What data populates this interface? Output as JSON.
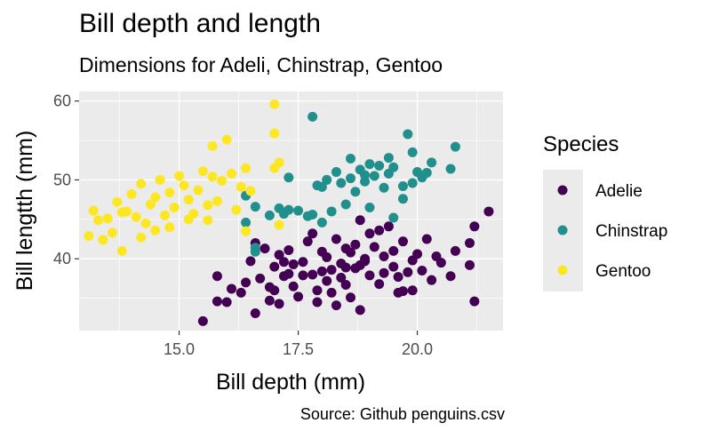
{
  "chart_data": {
    "type": "scatter",
    "title": "Bill depth and length",
    "subtitle": "Dimensions for Adeli, Chinstrap, Gentoo",
    "caption": "Source: Github penguins.csv",
    "xlabel": "Bill depth (mm)",
    "ylabel": "Bill lengtth (mm)",
    "xlim": [
      12.9,
      21.8
    ],
    "ylim": [
      30.9,
      61.2
    ],
    "xticks": [
      15.0,
      17.5,
      20.0
    ],
    "xtick_labels": [
      "15.0",
      "17.5",
      "20.0"
    ],
    "yticks": [
      40,
      50,
      60
    ],
    "ytick_labels": [
      "40",
      "50",
      "60"
    ],
    "grid": true,
    "legend": {
      "title": "Species",
      "position": "right"
    },
    "series": [
      {
        "name": "Adelie",
        "color": "#440154",
        "points": [
          [
            15.5,
            32.1
          ],
          [
            16.6,
            33.1
          ],
          [
            16.0,
            34.5
          ],
          [
            16.3,
            35.7
          ],
          [
            15.8,
            34.6
          ],
          [
            16.1,
            36.2
          ],
          [
            15.8,
            37.8
          ],
          [
            16.4,
            37.0
          ],
          [
            16.9,
            36.4
          ],
          [
            16.9,
            34.7
          ],
          [
            17.0,
            36.0
          ],
          [
            17.1,
            34.3
          ],
          [
            17.2,
            37.8
          ],
          [
            17.3,
            38.1
          ],
          [
            17.4,
            36.5
          ],
          [
            17.6,
            37.9
          ],
          [
            17.8,
            38.0
          ],
          [
            17.9,
            34.5
          ],
          [
            18.0,
            38.4
          ],
          [
            18.1,
            37.2
          ],
          [
            18.2,
            38.6
          ],
          [
            18.4,
            39.4
          ],
          [
            18.5,
            36.7
          ],
          [
            18.6,
            40.8
          ],
          [
            18.7,
            38.8
          ],
          [
            18.8,
            39.2
          ],
          [
            18.9,
            40.0
          ],
          [
            19.0,
            37.9
          ],
          [
            19.1,
            41.5
          ],
          [
            19.2,
            36.8
          ],
          [
            19.3,
            40.3
          ],
          [
            19.5,
            39.0
          ],
          [
            19.6,
            37.7
          ],
          [
            19.7,
            42.2
          ],
          [
            19.9,
            39.8
          ],
          [
            20.0,
            40.6
          ],
          [
            20.2,
            42.5
          ],
          [
            20.5,
            39.5
          ],
          [
            20.7,
            37.8
          ],
          [
            20.8,
            41.0
          ],
          [
            21.1,
            42.0
          ],
          [
            21.2,
            44.1
          ],
          [
            21.1,
            39.2
          ],
          [
            21.2,
            34.6
          ],
          [
            21.5,
            46.0
          ],
          [
            20.3,
            37.3
          ],
          [
            19.4,
            44.1
          ],
          [
            18.8,
            44.9
          ],
          [
            18.3,
            42.5
          ],
          [
            17.8,
            43.2
          ],
          [
            17.3,
            41.1
          ],
          [
            16.8,
            41.3
          ],
          [
            16.6,
            42.0
          ],
          [
            17.0,
            39.0
          ],
          [
            17.6,
            39.6
          ],
          [
            18.0,
            40.9
          ],
          [
            18.5,
            41.3
          ],
          [
            19.0,
            43.2
          ],
          [
            19.3,
            38.2
          ],
          [
            19.9,
            36.0
          ],
          [
            18.6,
            35.1
          ],
          [
            18.2,
            35.7
          ],
          [
            17.9,
            36.0
          ],
          [
            17.5,
            35.2
          ],
          [
            18.8,
            33.5
          ],
          [
            19.6,
            35.7
          ],
          [
            20.1,
            38.5
          ],
          [
            18.4,
            37.6
          ],
          [
            17.7,
            42.2
          ],
          [
            19.5,
            41.0
          ],
          [
            18.9,
            39.7
          ],
          [
            18.1,
            40.2
          ],
          [
            17.4,
            39.3
          ],
          [
            16.7,
            37.5
          ],
          [
            16.5,
            39.7
          ],
          [
            17.1,
            40.5
          ],
          [
            18.7,
            41.8
          ],
          [
            19.2,
            43.6
          ],
          [
            20.4,
            40.3
          ],
          [
            19.8,
            38.3
          ],
          [
            19.7,
            35.9
          ],
          [
            18.3,
            34.1
          ],
          [
            17.2,
            39.6
          ],
          [
            18.5,
            38.9
          ]
        ]
      },
      {
        "name": "Chinstrap",
        "color": "#21908C",
        "points": [
          [
            16.4,
            48.0
          ],
          [
            16.6,
            46.6
          ],
          [
            16.4,
            44.6
          ],
          [
            16.6,
            41.4
          ],
          [
            16.6,
            40.9
          ],
          [
            17.1,
            46.4
          ],
          [
            17.2,
            45.7
          ],
          [
            17.3,
            50.3
          ],
          [
            17.8,
            58.0
          ],
          [
            17.8,
            45.6
          ],
          [
            17.9,
            49.3
          ],
          [
            18.0,
            44.6
          ],
          [
            18.1,
            50.0
          ],
          [
            18.3,
            51.0
          ],
          [
            18.4,
            49.6
          ],
          [
            18.5,
            46.9
          ],
          [
            18.6,
            50.2
          ],
          [
            18.7,
            48.5
          ],
          [
            18.8,
            51.3
          ],
          [
            18.9,
            49.8
          ],
          [
            19.0,
            52.0
          ],
          [
            19.1,
            50.5
          ],
          [
            19.2,
            51.8
          ],
          [
            19.3,
            49.0
          ],
          [
            19.4,
            50.8
          ],
          [
            19.5,
            51.6
          ],
          [
            19.7,
            49.2
          ],
          [
            19.8,
            55.8
          ],
          [
            19.9,
            53.5
          ],
          [
            20.0,
            51.0
          ],
          [
            20.2,
            50.9
          ],
          [
            20.7,
            51.4
          ],
          [
            20.8,
            54.2
          ],
          [
            20.3,
            52.2
          ],
          [
            19.7,
            47.6
          ],
          [
            19.5,
            45.2
          ],
          [
            19.0,
            46.5
          ],
          [
            18.2,
            46.0
          ],
          [
            17.7,
            45.4
          ],
          [
            17.3,
            46.2
          ],
          [
            16.9,
            45.5
          ],
          [
            17.5,
            46.1
          ],
          [
            18.6,
            52.7
          ],
          [
            18.9,
            50.6
          ],
          [
            19.4,
            52.8
          ],
          [
            20.1,
            50.3
          ],
          [
            19.9,
            49.6
          ],
          [
            18.0,
            49.1
          ]
        ]
      },
      {
        "name": "Gentoo",
        "color": "#FDE725",
        "points": [
          [
            13.1,
            42.9
          ],
          [
            13.2,
            46.1
          ],
          [
            13.3,
            44.9
          ],
          [
            13.4,
            42.4
          ],
          [
            13.5,
            45.1
          ],
          [
            13.6,
            43.3
          ],
          [
            13.7,
            47.2
          ],
          [
            13.8,
            41.0
          ],
          [
            13.9,
            46.0
          ],
          [
            14.0,
            48.2
          ],
          [
            14.1,
            45.3
          ],
          [
            14.2,
            49.5
          ],
          [
            14.3,
            44.5
          ],
          [
            14.4,
            46.9
          ],
          [
            14.5,
            47.8
          ],
          [
            14.6,
            50.0
          ],
          [
            14.7,
            45.5
          ],
          [
            14.8,
            48.4
          ],
          [
            14.9,
            46.5
          ],
          [
            15.0,
            50.5
          ],
          [
            15.1,
            49.3
          ],
          [
            15.2,
            47.5
          ],
          [
            15.3,
            45.7
          ],
          [
            15.4,
            48.7
          ],
          [
            15.5,
            51.1
          ],
          [
            15.6,
            46.8
          ],
          [
            15.7,
            50.4
          ],
          [
            15.8,
            47.3
          ],
          [
            15.9,
            49.9
          ],
          [
            16.0,
            55.1
          ],
          [
            16.1,
            50.8
          ],
          [
            16.2,
            46.2
          ],
          [
            16.3,
            49.1
          ],
          [
            16.4,
            51.5
          ],
          [
            16.5,
            48.6
          ],
          [
            15.7,
            54.3
          ],
          [
            17.0,
            59.6
          ],
          [
            17.0,
            55.9
          ],
          [
            17.0,
            51.5
          ],
          [
            17.1,
            52.2
          ],
          [
            17.1,
            44.3
          ],
          [
            16.4,
            43.5
          ],
          [
            15.6,
            44.9
          ],
          [
            14.8,
            44.0
          ],
          [
            13.8,
            45.9
          ],
          [
            14.2,
            42.7
          ],
          [
            15.2,
            45.0
          ],
          [
            14.5,
            43.6
          ]
        ]
      }
    ]
  }
}
